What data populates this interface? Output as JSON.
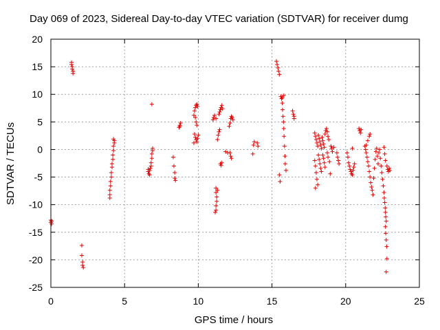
{
  "chart_data": {
    "type": "scatter",
    "title": "Day 069 of 2023, Sidereal Day-to-day VTEC variation (SDTVAR) for receiver dumg",
    "xlabel": "GPS time / hours",
    "ylabel": "SDTVAR / TECUs",
    "xlim": [
      0,
      25
    ],
    "ylim": [
      -25,
      20
    ],
    "xticks": [
      0,
      5,
      10,
      15,
      20,
      25
    ],
    "yticks": [
      -25,
      -20,
      -15,
      -10,
      -5,
      0,
      5,
      10,
      15,
      20
    ],
    "grid": true,
    "marker": "+",
    "color": "#e00000",
    "series": [
      {
        "name": "SDTVAR",
        "points": [
          [
            0.0,
            -12.8
          ],
          [
            0.0,
            -13.2
          ],
          [
            0.05,
            -13.5
          ],
          [
            0.05,
            -13.0
          ],
          [
            1.4,
            15.8
          ],
          [
            1.4,
            15.4
          ],
          [
            1.45,
            15.0
          ],
          [
            1.45,
            14.6
          ],
          [
            1.5,
            14.2
          ],
          [
            1.5,
            13.8
          ],
          [
            2.1,
            -17.4
          ],
          [
            2.1,
            -19.2
          ],
          [
            2.15,
            -20.4
          ],
          [
            2.15,
            -21.0
          ],
          [
            2.2,
            -21.4
          ],
          [
            4.0,
            -8.8
          ],
          [
            4.0,
            -8.2
          ],
          [
            4.0,
            -7.4
          ],
          [
            4.05,
            -6.6
          ],
          [
            4.05,
            -5.8
          ],
          [
            4.1,
            -5.0
          ],
          [
            4.1,
            -4.2
          ],
          [
            4.15,
            -3.2
          ],
          [
            4.15,
            -2.6
          ],
          [
            4.2,
            -1.8
          ],
          [
            4.2,
            -1.0
          ],
          [
            4.25,
            -0.2
          ],
          [
            4.25,
            0.6
          ],
          [
            4.3,
            1.2
          ],
          [
            4.3,
            1.6
          ],
          [
            4.25,
            1.9
          ],
          [
            6.6,
            -3.6
          ],
          [
            6.6,
            -4.0
          ],
          [
            6.65,
            -4.4
          ],
          [
            6.7,
            -3.8
          ],
          [
            6.7,
            -4.6
          ],
          [
            6.75,
            -3.4
          ],
          [
            6.8,
            -3.0
          ],
          [
            6.8,
            -2.4
          ],
          [
            6.85,
            -1.6
          ],
          [
            6.85,
            -0.8
          ],
          [
            6.9,
            -0.2
          ],
          [
            6.9,
            0.2
          ],
          [
            6.85,
            8.2
          ],
          [
            8.3,
            -1.4
          ],
          [
            8.35,
            -3.0
          ],
          [
            8.4,
            -4.2
          ],
          [
            8.4,
            -5.2
          ],
          [
            8.45,
            -5.6
          ],
          [
            8.7,
            4.0
          ],
          [
            8.75,
            4.4
          ],
          [
            8.8,
            4.8
          ],
          [
            8.75,
            4.2
          ],
          [
            9.7,
            6.2
          ],
          [
            9.75,
            7.0
          ],
          [
            9.8,
            7.6
          ],
          [
            9.85,
            8.0
          ],
          [
            9.9,
            8.2
          ],
          [
            9.95,
            7.8
          ],
          [
            9.8,
            5.8
          ],
          [
            9.85,
            5.0
          ],
          [
            9.9,
            4.4
          ],
          [
            9.75,
            2.8
          ],
          [
            9.8,
            2.2
          ],
          [
            9.85,
            1.8
          ],
          [
            9.9,
            1.4
          ],
          [
            9.95,
            2.0
          ],
          [
            10.0,
            2.6
          ],
          [
            9.7,
            1.2
          ],
          [
            11.0,
            5.4
          ],
          [
            11.05,
            5.8
          ],
          [
            11.1,
            6.2
          ],
          [
            11.2,
            5.6
          ],
          [
            11.2,
            -7.0
          ],
          [
            11.2,
            -7.8
          ],
          [
            11.25,
            -8.6
          ],
          [
            11.25,
            -9.4
          ],
          [
            11.2,
            -10.2
          ],
          [
            11.2,
            -11.0
          ],
          [
            11.15,
            -11.4
          ],
          [
            11.3,
            -7.4
          ],
          [
            11.3,
            1.8
          ],
          [
            11.35,
            2.6
          ],
          [
            11.4,
            3.2
          ],
          [
            11.45,
            3.6
          ],
          [
            11.4,
            6.4
          ],
          [
            11.45,
            6.8
          ],
          [
            11.5,
            7.2
          ],
          [
            11.55,
            7.6
          ],
          [
            11.6,
            8.0
          ],
          [
            11.65,
            7.4
          ],
          [
            11.5,
            -2.6
          ],
          [
            11.55,
            -2.9
          ],
          [
            11.6,
            -2.4
          ],
          [
            11.85,
            -0.4
          ],
          [
            12.0,
            -0.6
          ],
          [
            12.1,
            4.2
          ],
          [
            12.15,
            4.8
          ],
          [
            12.2,
            5.6
          ],
          [
            12.25,
            6.0
          ],
          [
            12.3,
            5.8
          ],
          [
            12.35,
            5.4
          ],
          [
            12.15,
            -0.6
          ],
          [
            12.2,
            -1.2
          ],
          [
            12.25,
            -1.6
          ],
          [
            13.7,
            -0.8
          ],
          [
            13.75,
            0.8
          ],
          [
            13.8,
            1.4
          ],
          [
            14.0,
            1.2
          ],
          [
            14.05,
            0.6
          ],
          [
            15.3,
            16.0
          ],
          [
            15.35,
            15.4
          ],
          [
            15.4,
            14.8
          ],
          [
            15.45,
            14.2
          ],
          [
            15.5,
            13.6
          ],
          [
            15.5,
            -4.6
          ],
          [
            15.55,
            -5.8
          ],
          [
            15.6,
            9.6
          ],
          [
            15.65,
            9.2
          ],
          [
            15.7,
            8.4
          ],
          [
            15.72,
            7.2
          ],
          [
            15.75,
            6.0
          ],
          [
            15.78,
            5.0
          ],
          [
            15.8,
            3.8
          ],
          [
            15.82,
            2.4
          ],
          [
            15.85,
            0.6
          ],
          [
            15.88,
            -1.2
          ],
          [
            15.9,
            -2.6
          ],
          [
            15.95,
            -3.8
          ],
          [
            15.7,
            9.4
          ],
          [
            15.8,
            9.8
          ],
          [
            16.4,
            7.0
          ],
          [
            16.45,
            6.4
          ],
          [
            16.5,
            6.0
          ],
          [
            16.5,
            5.6
          ],
          [
            17.9,
            3.0
          ],
          [
            17.95,
            2.4
          ],
          [
            18.0,
            1.8
          ],
          [
            18.05,
            1.2
          ],
          [
            18.1,
            0.6
          ],
          [
            18.15,
            2.6
          ],
          [
            18.2,
            2.0
          ],
          [
            18.25,
            1.4
          ],
          [
            18.3,
            0.8
          ],
          [
            18.35,
            0.2
          ],
          [
            18.4,
            2.2
          ],
          [
            18.45,
            1.6
          ],
          [
            18.5,
            1.0
          ],
          [
            18.55,
            0.4
          ],
          [
            18.6,
            2.8
          ],
          [
            18.65,
            3.4
          ],
          [
            18.7,
            3.8
          ],
          [
            18.75,
            3.2
          ],
          [
            18.8,
            2.4
          ],
          [
            18.85,
            1.8
          ],
          [
            17.9,
            -2.0
          ],
          [
            17.95,
            -3.0
          ],
          [
            18.0,
            -4.2
          ],
          [
            18.05,
            -5.4
          ],
          [
            18.1,
            -6.4
          ],
          [
            17.95,
            -7.0
          ],
          [
            18.15,
            -1.0
          ],
          [
            18.2,
            -1.8
          ],
          [
            18.25,
            -2.6
          ],
          [
            18.3,
            -3.4
          ],
          [
            18.35,
            -4.0
          ],
          [
            18.45,
            -1.0
          ],
          [
            18.5,
            -1.6
          ],
          [
            18.55,
            -2.4
          ],
          [
            18.6,
            -3.2
          ],
          [
            18.75,
            -0.6
          ],
          [
            18.8,
            -1.4
          ],
          [
            18.9,
            -2.2
          ],
          [
            18.95,
            -4.4
          ],
          [
            19.0,
            0.6
          ],
          [
            19.05,
            0.2
          ],
          [
            19.1,
            -0.4
          ],
          [
            19.2,
            0.4
          ],
          [
            19.4,
            -0.6
          ],
          [
            19.45,
            -1.4
          ],
          [
            19.5,
            -2.0
          ],
          [
            19.55,
            -2.6
          ],
          [
            20.1,
            -0.6
          ],
          [
            20.15,
            -1.4
          ],
          [
            20.2,
            -2.4
          ],
          [
            20.25,
            -3.0
          ],
          [
            20.3,
            -3.6
          ],
          [
            20.35,
            -4.0
          ],
          [
            20.4,
            -4.4
          ],
          [
            20.45,
            -4.6
          ],
          [
            20.5,
            -3.8
          ],
          [
            20.55,
            -3.2
          ],
          [
            20.6,
            -2.6
          ],
          [
            20.45,
            0.2
          ],
          [
            20.9,
            3.8
          ],
          [
            20.95,
            3.4
          ],
          [
            21.0,
            3.0
          ],
          [
            21.05,
            3.6
          ],
          [
            21.3,
            0.6
          ],
          [
            21.35,
            0.0
          ],
          [
            21.4,
            -0.6
          ],
          [
            21.45,
            -1.4
          ],
          [
            21.5,
            -2.2
          ],
          [
            21.55,
            -3.0
          ],
          [
            21.6,
            -4.0
          ],
          [
            21.65,
            -5.0
          ],
          [
            21.7,
            -6.0
          ],
          [
            21.75,
            -6.8
          ],
          [
            21.4,
            0.8
          ],
          [
            21.5,
            1.6
          ],
          [
            21.6,
            2.4
          ],
          [
            21.65,
            2.8
          ],
          [
            21.8,
            -7.4
          ],
          [
            21.85,
            -8.2
          ],
          [
            21.9,
            -5.2
          ],
          [
            21.95,
            -3.4
          ],
          [
            22.0,
            -1.8
          ],
          [
            22.05,
            -0.4
          ],
          [
            22.1,
            0.2
          ],
          [
            22.15,
            -1.2
          ],
          [
            22.2,
            -2.6
          ],
          [
            22.25,
            -0.6
          ],
          [
            22.3,
            0.0
          ],
          [
            22.35,
            -1.6
          ],
          [
            22.4,
            -3.0
          ],
          [
            22.45,
            -4.2
          ],
          [
            22.5,
            -5.4
          ],
          [
            22.55,
            -6.6
          ],
          [
            22.6,
            -7.8
          ],
          [
            22.62,
            -8.8
          ],
          [
            22.65,
            -9.6
          ],
          [
            22.68,
            -10.6
          ],
          [
            22.7,
            -11.4
          ],
          [
            22.72,
            -12.2
          ],
          [
            22.75,
            -13.0
          ],
          [
            22.7,
            -14.0
          ],
          [
            22.72,
            -15.2
          ],
          [
            22.75,
            -16.4
          ],
          [
            22.78,
            -17.6
          ],
          [
            22.8,
            -19.8
          ],
          [
            22.75,
            -22.2
          ],
          [
            22.6,
            0.4
          ],
          [
            22.65,
            -0.8
          ],
          [
            22.7,
            -2.0
          ],
          [
            22.8,
            -3.0
          ],
          [
            22.85,
            -3.6
          ],
          [
            22.9,
            -4.0
          ],
          [
            22.95,
            -3.4
          ],
          [
            23.0,
            -3.8
          ]
        ]
      }
    ]
  }
}
